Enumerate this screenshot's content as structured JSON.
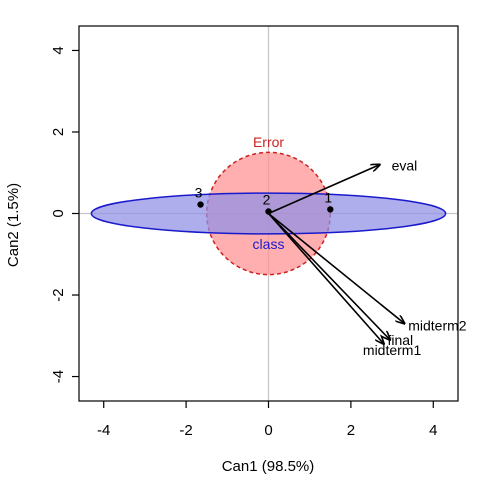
{
  "chart_data": {
    "type": "scatter",
    "title": "",
    "xlabel": "Can1 (98.5%)",
    "ylabel": "Can2 (1.5%)",
    "xlim": [
      -4.6,
      4.6
    ],
    "ylim": [
      -4.6,
      4.6
    ],
    "xticks": [
      -4,
      -2,
      0,
      2,
      4
    ],
    "yticks": [
      -4,
      -2,
      0,
      2,
      4
    ],
    "xtick_labels": [
      "-4",
      "-2",
      "0",
      "2",
      "4"
    ],
    "ytick_labels": [
      "-4",
      "-2",
      "0",
      "2",
      "4"
    ],
    "reference_lines": {
      "x": 0,
      "y": 0,
      "color": "#c8c8c8"
    },
    "ellipses": [
      {
        "name": "Error",
        "label": "Error",
        "center": [
          0,
          0
        ],
        "rx": 1.5,
        "ry": 1.5,
        "fill": "#ff9090",
        "stroke": "#cc2222",
        "fill_opacity": 0.72,
        "dashed": true,
        "label_at": [
          0,
          1.75
        ]
      },
      {
        "name": "class",
        "label": "class",
        "center": [
          0,
          0
        ],
        "rx": 4.3,
        "ry": 0.5,
        "fill": "#8f8fe6",
        "stroke": "#1a1acc",
        "fill_opacity": 0.72,
        "dashed": false,
        "label_at": [
          0,
          -0.75
        ]
      }
    ],
    "points": [
      {
        "label": "1",
        "x": 1.5,
        "y": 0.1
      },
      {
        "label": "2",
        "x": 0.0,
        "y": 0.05
      },
      {
        "label": "3",
        "x": -1.65,
        "y": 0.22
      }
    ],
    "vectors": [
      {
        "name": "eval",
        "x": 2.7,
        "y": 1.2,
        "label_at": [
          3.3,
          1.18
        ]
      },
      {
        "name": "midterm2",
        "x": 3.3,
        "y": -2.7,
        "label_at": [
          4.1,
          -2.75
        ]
      },
      {
        "name": "final",
        "x": 2.95,
        "y": -3.1,
        "label_at": [
          3.2,
          -3.1
        ]
      },
      {
        "name": "midterm1",
        "x": 2.8,
        "y": -3.2,
        "label_at": [
          3.0,
          -3.35
        ]
      }
    ],
    "colors": {
      "vector": "#000000",
      "point": "#000000",
      "frame": "#000000"
    }
  }
}
